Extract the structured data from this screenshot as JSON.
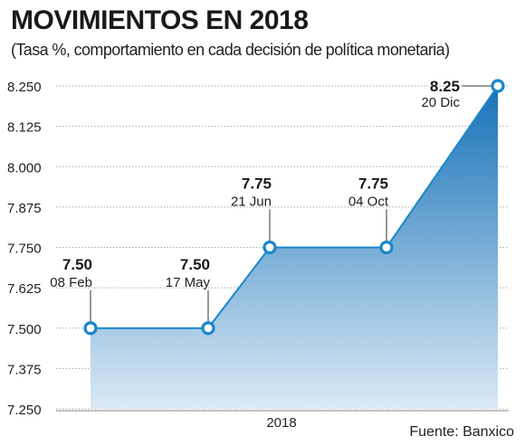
{
  "header": {
    "title": "MOVIMIENTOS EN 2018",
    "subtitle": "(Tasa %, comportamiento en cada decisión de política monetaria)"
  },
  "footer": {
    "source": "Fuente: Banxico"
  },
  "colors": {
    "accent": "#1b87c9",
    "area_top": "#1672b8",
    "area_bottom": "#dbe9f5",
    "grid": "#aaaaaa"
  },
  "chart_data": {
    "type": "area",
    "title": "MOVIMIENTOS EN 2018",
    "xlabel": "2018",
    "ylabel": "",
    "ylim": [
      7.25,
      8.25
    ],
    "yticks": [
      "8.250",
      "8.125",
      "8.000",
      "7.875",
      "7.750",
      "7.625",
      "7.500",
      "7.375",
      "7.250"
    ],
    "grid": true,
    "series": [
      {
        "points": [
          {
            "x": "08 Feb",
            "y": 7.5,
            "value_label": "7.50",
            "date_label": "08 Feb"
          },
          {
            "x": "17 May",
            "y": 7.5,
            "value_label": "7.50",
            "date_label": "17 May"
          },
          {
            "x": "21 Jun",
            "y": 7.75,
            "value_label": "7.75",
            "date_label": "21 Jun"
          },
          {
            "x": "04 Oct",
            "y": 7.75,
            "value_label": "7.75",
            "date_label": "04 Oct"
          },
          {
            "x": "20 Dic",
            "y": 8.25,
            "value_label": "8.25",
            "date_label": "20 Dic"
          }
        ]
      }
    ]
  }
}
